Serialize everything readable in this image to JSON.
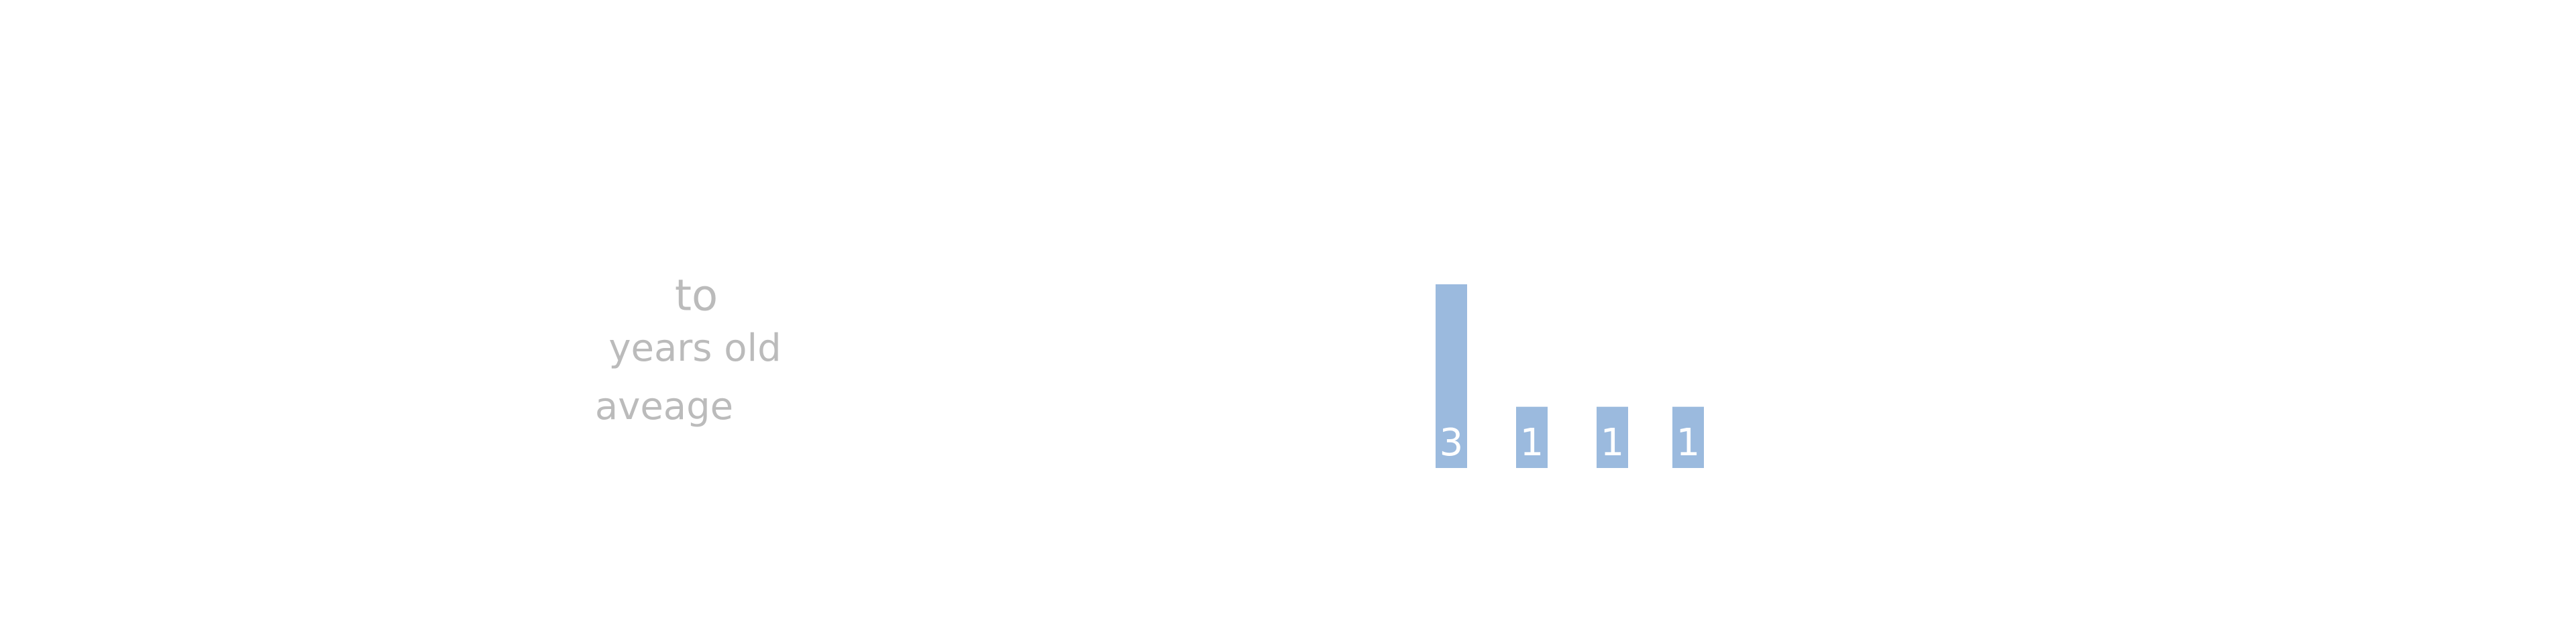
{
  "chart_data": {
    "type": "bar",
    "annotations": [
      "to",
      "years old",
      "aveage"
    ],
    "values": [
      3,
      1,
      1,
      1
    ],
    "color": "#9bbade",
    "label_color": "#ffffff",
    "text_color": "#bbbbbb"
  }
}
